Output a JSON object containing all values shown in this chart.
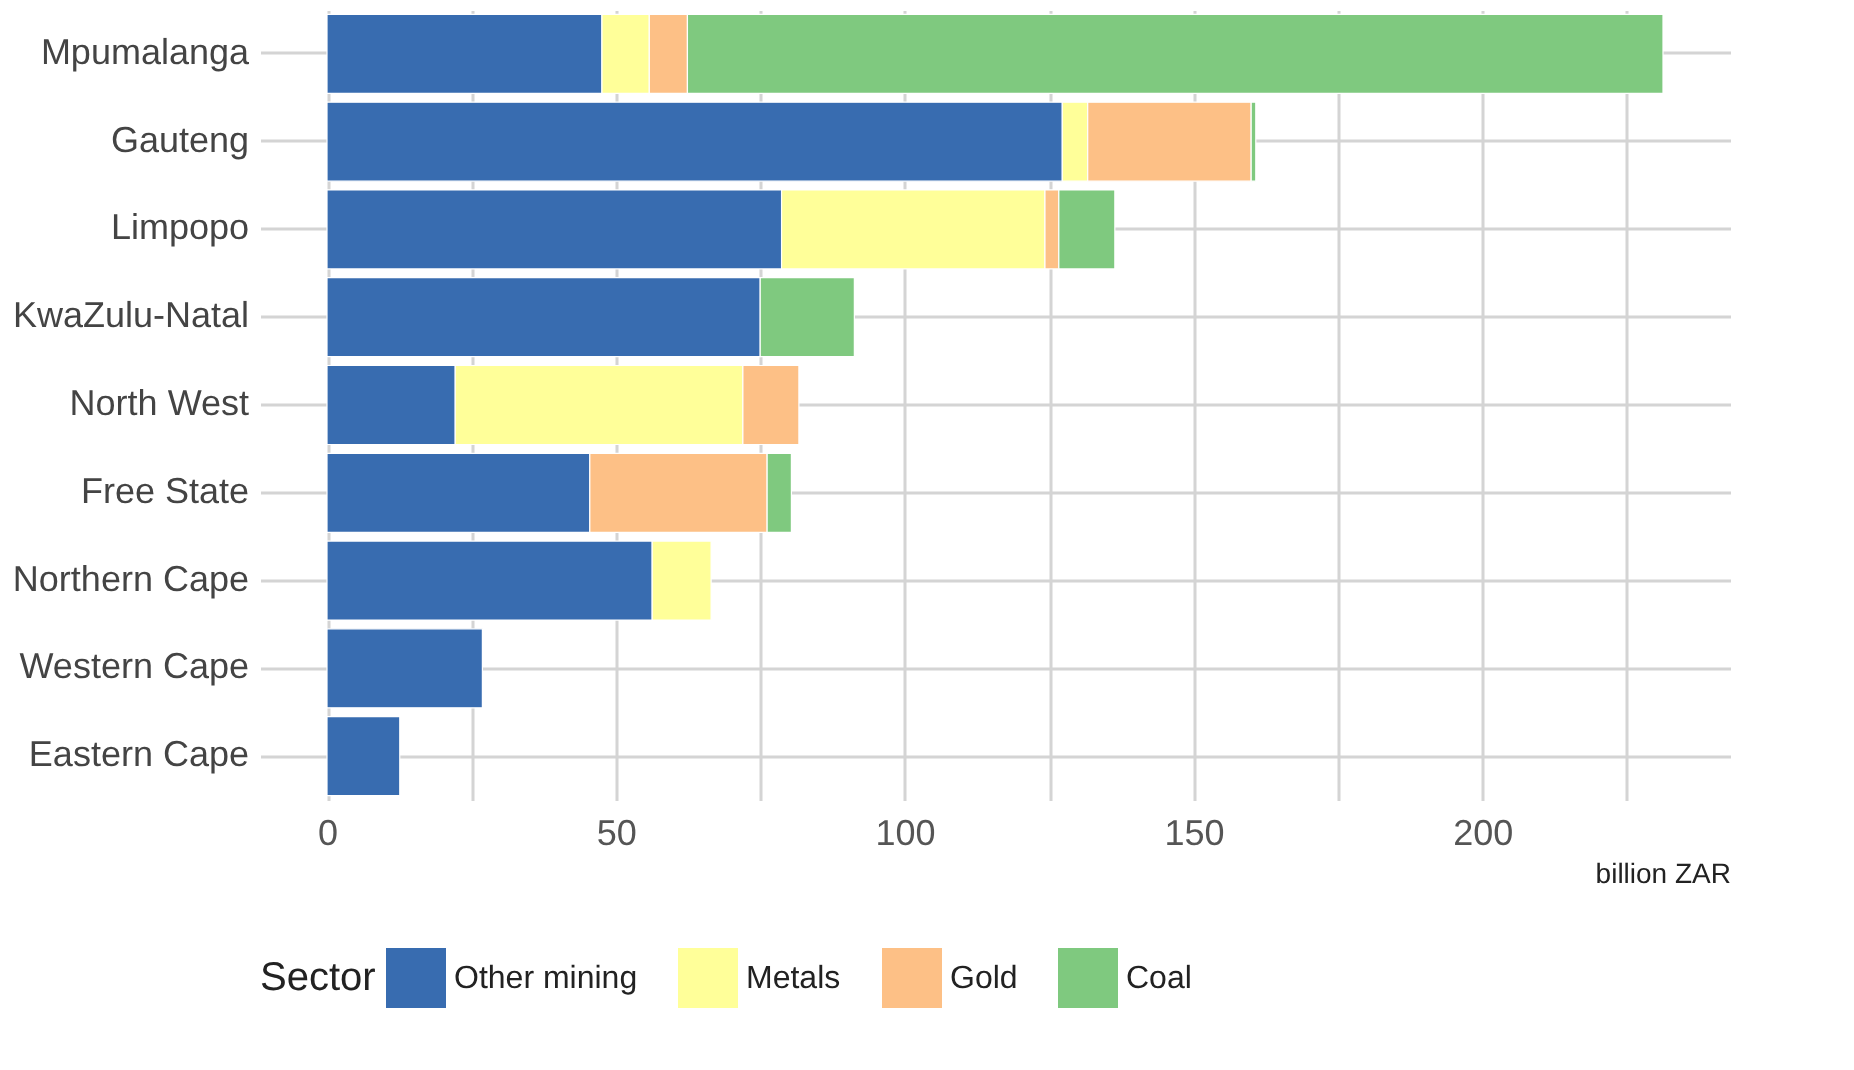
{
  "chart_data": {
    "type": "bar",
    "orientation": "horizontal",
    "stacked": true,
    "categories": [
      "Mpumalanga",
      "Gauteng",
      "Limpopo",
      "KwaZulu-Natal",
      "North West",
      "Free State",
      "Northern Cape",
      "Western Cape",
      "Eastern Cape"
    ],
    "series": [
      {
        "name": "Other mining",
        "color": "#386cb0",
        "values": [
          47.6,
          127.3,
          78.7,
          75.0,
          22.2,
          45.5,
          56.3,
          26.9,
          12.6
        ]
      },
      {
        "name": "Metals",
        "color": "#ffff99",
        "values": [
          8.2,
          4.4,
          45.6,
          null,
          49.8,
          null,
          10.2,
          null,
          null
        ]
      },
      {
        "name": "Gold",
        "color": "#fdc086",
        "values": [
          6.6,
          28.3,
          2.4,
          null,
          9.7,
          30.7,
          null,
          null,
          null
        ]
      },
      {
        "name": "Coal",
        "color": "#7fc97f",
        "values": [
          168.9,
          0.8,
          9.7,
          16.3,
          null,
          4.2,
          null,
          null,
          null
        ]
      }
    ],
    "xlabel": "billion ZAR",
    "legend_title": "Sector",
    "legend": "bottom",
    "xlim": [
      -11.6,
      242.9
    ],
    "xticks": [
      0,
      {
        "value": 25,
        "label": null
      },
      50,
      {
        "value": 75,
        "label": null
      },
      100,
      {
        "value": 125,
        "label": null
      },
      150,
      {
        "value": 175,
        "label": null
      },
      200,
      {
        "value": 225,
        "label": null
      }
    ],
    "grid": true
  }
}
